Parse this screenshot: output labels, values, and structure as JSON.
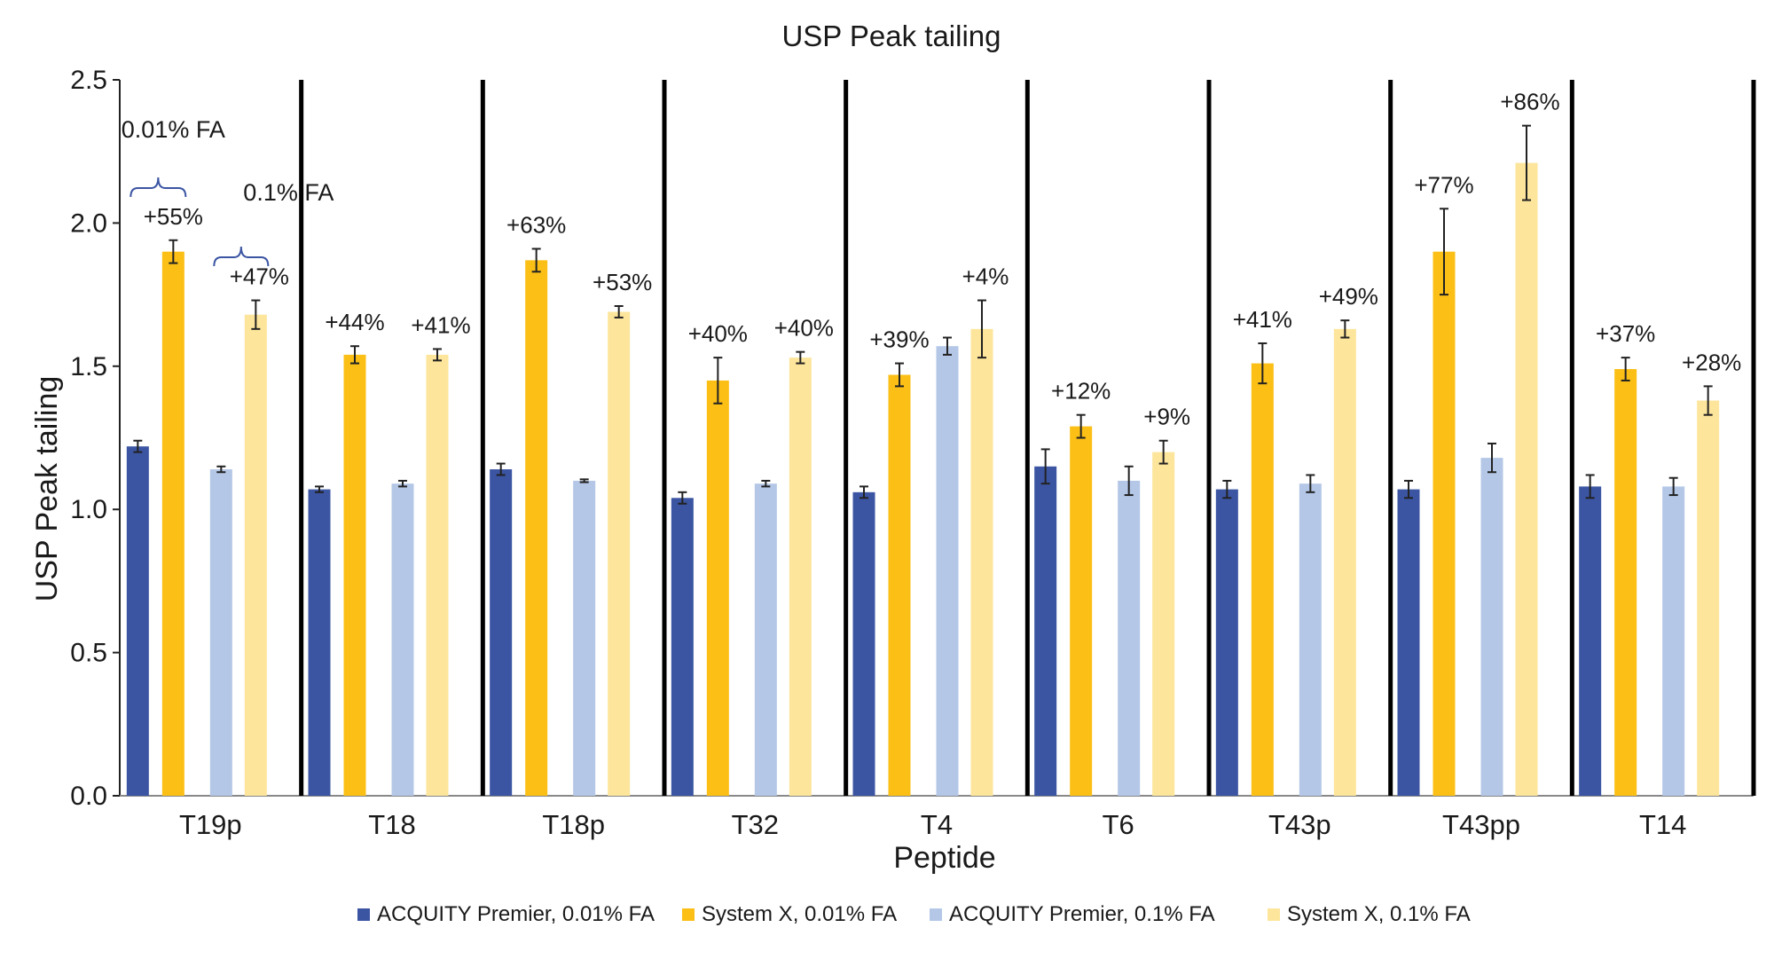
{
  "chart_data": {
    "type": "bar",
    "title": "USP Peak tailing",
    "xlabel": "Peptide",
    "ylabel": "USP Peak tailing",
    "ylim": [
      0,
      2.5
    ],
    "yticks": [
      "0.0",
      "0.5",
      "1.0",
      "1.5",
      "2.0",
      "2.5"
    ],
    "categories": [
      "T19p",
      "T18",
      "T18p",
      "T32",
      "T4",
      "T6",
      "T43p",
      "T43pp",
      "T14"
    ],
    "series": [
      {
        "name": "ACQUITY Premier, 0.01% FA",
        "color": "#3b55a3",
        "values": [
          1.22,
          1.07,
          1.14,
          1.04,
          1.06,
          1.15,
          1.07,
          1.07,
          1.08
        ],
        "errors": [
          0.02,
          0.01,
          0.02,
          0.02,
          0.02,
          0.06,
          0.03,
          0.03,
          0.04
        ]
      },
      {
        "name": "System X, 0.01% FA",
        "color": "#fbbf16",
        "values": [
          1.9,
          1.54,
          1.87,
          1.45,
          1.47,
          1.29,
          1.51,
          1.9,
          1.49
        ],
        "errors": [
          0.04,
          0.03,
          0.04,
          0.08,
          0.04,
          0.04,
          0.07,
          0.15,
          0.04
        ]
      },
      {
        "name": "ACQUITY Premier, 0.1% FA",
        "color": "#b4c7e7",
        "values": [
          1.14,
          1.09,
          1.1,
          1.09,
          1.57,
          1.1,
          1.09,
          1.18,
          1.08
        ],
        "errors": [
          0.01,
          0.01,
          0.005,
          0.01,
          0.03,
          0.05,
          0.03,
          0.05,
          0.03
        ]
      },
      {
        "name": "System X, 0.1% FA",
        "color": "#fde59b",
        "values": [
          1.68,
          1.54,
          1.69,
          1.53,
          1.63,
          1.2,
          1.63,
          2.21,
          1.38
        ],
        "errors": [
          0.05,
          0.02,
          0.02,
          0.02,
          0.1,
          0.04,
          0.03,
          0.13,
          0.05
        ]
      }
    ],
    "increase_labels_001": [
      "+55%",
      "+44%",
      "+63%",
      "+40%",
      "+39%",
      "+12%",
      "+41%",
      "+77%",
      "+37%"
    ],
    "increase_labels_01": [
      "+47%",
      "+41%",
      "+53%",
      "+40%",
      "+4%",
      "+9%",
      "+49%",
      "+86%",
      "+28%"
    ],
    "annotations": [
      "0.01% FA",
      "0.1% FA"
    ],
    "grid": false,
    "legend_position": "bottom"
  }
}
